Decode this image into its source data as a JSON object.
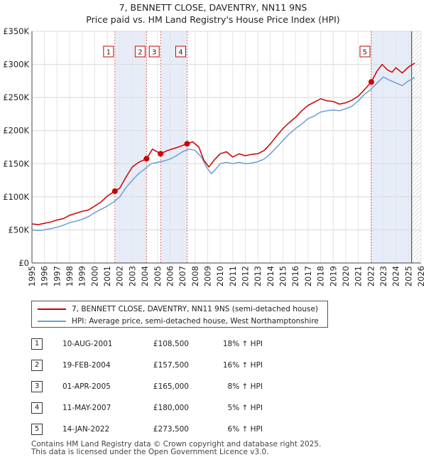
{
  "title": {
    "line1": "7, BENNETT CLOSE, DAVENTRY, NN11 9NS",
    "line2": "Price paid vs. HM Land Registry's House Price Index (HPI)"
  },
  "chart_data": {
    "type": "line",
    "title": "7, BENNETT CLOSE, DAVENTRY, NN11 9NS — Price paid vs. HM Land Registry's House Price Index (HPI)",
    "xlabel": "",
    "ylabel": "",
    "xlim": [
      1995,
      2026
    ],
    "ylim": [
      0,
      350000
    ],
    "x_ticks": [
      1995,
      1996,
      1997,
      1998,
      1999,
      2000,
      2001,
      2002,
      2003,
      2004,
      2005,
      2006,
      2007,
      2008,
      2009,
      2010,
      2011,
      2012,
      2013,
      2014,
      2015,
      2016,
      2017,
      2018,
      2019,
      2020,
      2021,
      2022,
      2023,
      2024,
      2025,
      2026
    ],
    "y_ticks": [
      0,
      50000,
      100000,
      150000,
      200000,
      250000,
      300000,
      350000
    ],
    "y_tick_labels": [
      "£0",
      "£50K",
      "£100K",
      "£150K",
      "£200K",
      "£250K",
      "£300K",
      "£350K"
    ],
    "grid": true,
    "projection_start_x": 2025.25,
    "series": [
      {
        "name": "7, BENNETT CLOSE, DAVENTRY, NN11 9NS (semi-detached house)",
        "color": "#cc0000",
        "x": [
          1995.0,
          1995.5,
          1996.0,
          1996.5,
          1997.0,
          1997.5,
          1998.0,
          1998.5,
          1999.0,
          1999.5,
          2000.0,
          2000.5,
          2001.0,
          2001.61,
          2002.0,
          2002.5,
          2003.0,
          2003.5,
          2004.13,
          2004.6,
          2005.25,
          2005.8,
          2006.5,
          2007.36,
          2007.8,
          2008.3,
          2008.7,
          2009.1,
          2009.5,
          2010.0,
          2010.5,
          2011.0,
          2011.5,
          2012.0,
          2012.5,
          2013.0,
          2013.5,
          2014.0,
          2014.5,
          2015.0,
          2015.5,
          2016.0,
          2016.5,
          2017.0,
          2017.5,
          2018.0,
          2018.5,
          2019.0,
          2019.5,
          2020.0,
          2020.5,
          2021.0,
          2021.5,
          2022.04,
          2022.5,
          2022.9,
          2023.3,
          2023.7,
          2024.0,
          2024.5,
          2025.0,
          2025.5
        ],
        "values": [
          59000,
          58000,
          60000,
          62000,
          65000,
          67000,
          72000,
          75000,
          78000,
          80000,
          86000,
          92000,
          101000,
          108500,
          113000,
          130000,
          145000,
          152000,
          157500,
          172000,
          165000,
          170000,
          174000,
          180000,
          183000,
          175000,
          155000,
          145000,
          155000,
          165000,
          168000,
          160000,
          165000,
          162000,
          164000,
          165000,
          170000,
          180000,
          192000,
          203000,
          212000,
          220000,
          230000,
          238000,
          243000,
          248000,
          245000,
          244000,
          240000,
          242000,
          246000,
          252000,
          262000,
          273500,
          290000,
          300000,
          292000,
          288000,
          295000,
          287000,
          296000,
          302000
        ]
      },
      {
        "name": "HPI: Average price, semi-detached house, West Northamptonshire",
        "color": "#6b9fd4",
        "x": [
          1995.0,
          1995.5,
          1996.0,
          1996.5,
          1997.0,
          1997.5,
          1998.0,
          1998.5,
          1999.0,
          1999.5,
          2000.0,
          2000.5,
          2001.0,
          2001.5,
          2002.0,
          2002.5,
          2003.0,
          2003.5,
          2004.0,
          2004.5,
          2005.0,
          2005.5,
          2006.0,
          2006.5,
          2007.0,
          2007.5,
          2008.0,
          2008.5,
          2009.0,
          2009.3,
          2009.7,
          2010.0,
          2010.5,
          2011.0,
          2011.5,
          2012.0,
          2012.5,
          2013.0,
          2013.5,
          2014.0,
          2014.5,
          2015.0,
          2015.5,
          2016.0,
          2016.5,
          2017.0,
          2017.5,
          2018.0,
          2018.5,
          2019.0,
          2019.5,
          2020.0,
          2020.5,
          2021.0,
          2021.5,
          2022.0,
          2022.5,
          2023.0,
          2023.5,
          2024.0,
          2024.5,
          2025.0,
          2025.5
        ],
        "values": [
          50000,
          49000,
          50000,
          52000,
          54000,
          57000,
          61000,
          63000,
          66000,
          70000,
          76000,
          81000,
          86000,
          92000,
          100000,
          114000,
          125000,
          135000,
          142000,
          150000,
          152000,
          154000,
          157000,
          162000,
          168000,
          172000,
          170000,
          160000,
          142000,
          135000,
          143000,
          150000,
          152000,
          150000,
          152000,
          150000,
          151000,
          153000,
          157000,
          165000,
          175000,
          185000,
          195000,
          203000,
          210000,
          218000,
          222000,
          228000,
          230000,
          231000,
          230000,
          233000,
          237000,
          245000,
          255000,
          262000,
          272000,
          281000,
          276000,
          272000,
          268000,
          275000,
          280000
        ]
      }
    ],
    "sales": [
      {
        "n": "1",
        "x": 2001.61,
        "value": 108500
      },
      {
        "n": "2",
        "x": 2004.13,
        "value": 157500
      },
      {
        "n": "3",
        "x": 2005.25,
        "value": 165000
      },
      {
        "n": "4",
        "x": 2007.36,
        "value": 180000
      },
      {
        "n": "5",
        "x": 2022.04,
        "value": 273500
      }
    ],
    "shaded_periods": [
      [
        2001.61,
        2004.13
      ],
      [
        2005.25,
        2007.36
      ],
      [
        2022.04,
        2025.25
      ]
    ]
  },
  "legend": {
    "property": "7, BENNETT CLOSE, DAVENTRY, NN11 9NS (semi-detached house)",
    "hpi": "HPI: Average price, semi-detached house, West Northamptonshire",
    "property_color": "#cc0000",
    "hpi_color": "#6b9fd4"
  },
  "sales_table": [
    {
      "n": "1",
      "date": "10-AUG-2001",
      "price": "£108,500",
      "hpi": "18% ↑ HPI"
    },
    {
      "n": "2",
      "date": "19-FEB-2004",
      "price": "£157,500",
      "hpi": "16% ↑ HPI"
    },
    {
      "n": "3",
      "date": "01-APR-2005",
      "price": "£165,000",
      "hpi": "8% ↑ HPI"
    },
    {
      "n": "4",
      "date": "11-MAY-2007",
      "price": "£180,000",
      "hpi": "5% ↑ HPI"
    },
    {
      "n": "5",
      "date": "14-JAN-2022",
      "price": "£273,500",
      "hpi": "6% ↑ HPI"
    }
  ],
  "footer": {
    "line1": "Contains HM Land Registry data © Crown copyright and database right 2025.",
    "line2": "This data is licensed under the Open Government Licence v3.0."
  }
}
